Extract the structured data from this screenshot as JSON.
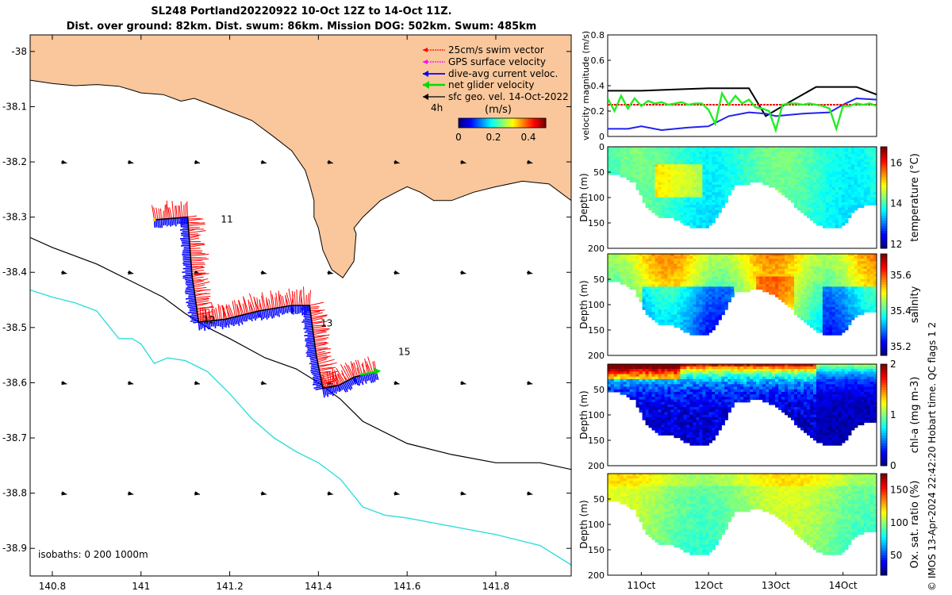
{
  "header": {
    "line1": "SL248 Portland20220922 10-Oct 12Z to 14-Oct 11Z.",
    "line2": "Dist. over ground: 82km. Dist. swum: 86km. Mission DOG: 502km. Swum: 485km"
  },
  "credit": "© IMOS 13-Apr-2024 22:42:20 Hobart time. QC flags 1  2",
  "colors": {
    "land": "#f9c79b",
    "swim_vector": "#ff0000",
    "gps_surface": "#ff00ff",
    "dive_avg_current": "#0000ff",
    "net_glider": "#00dd00",
    "sfc_geo_vel": "#000000",
    "isobath_200": "#000000",
    "isobath_1000": "#33dddd"
  },
  "chart_data": [
    {
      "type": "map",
      "xlim": [
        140.75,
        141.97
      ],
      "ylim": [
        -38.95,
        -37.97
      ],
      "x_ticks": [
        "140.8",
        "141",
        "141.2",
        "141.4",
        "141.6",
        "141.8"
      ],
      "y_ticks": [
        "-38",
        "-38.1",
        "-38.2",
        "-38.3",
        "-38.4",
        "-38.5",
        "-38.6",
        "-38.7",
        "-38.8",
        "-38.9"
      ],
      "legend": {
        "placement": "top-right",
        "entries": [
          "25cm/s swim vector",
          "GPS surface velocity",
          "dive-avg current veloc.",
          "net glider velocity",
          "sfc geo. vel. 14-Oct-2022"
        ]
      },
      "colorbar": {
        "label": "(m/s)",
        "ticks": [
          "0",
          "0.2",
          "0.4"
        ],
        "range": [
          0,
          0.5
        ]
      },
      "time_label": "4h",
      "annotations": [
        {
          "text": "11",
          "lon": 141.18,
          "lat": -38.31
        },
        {
          "text": "12",
          "lon": 141.14,
          "lat": -38.492
        },
        {
          "text": "13",
          "lon": 141.405,
          "lat": -38.498
        },
        {
          "text": "15",
          "lon": 141.58,
          "lat": -38.55
        }
      ],
      "isobaths_label": "isobaths: 0   200  1000m",
      "coastline": [
        [
          140.75,
          -38.052
        ],
        [
          140.8,
          -38.058
        ],
        [
          140.85,
          -38.062
        ],
        [
          140.9,
          -38.06
        ],
        [
          140.95,
          -38.063
        ],
        [
          140.98,
          -38.07
        ],
        [
          141.0,
          -38.075
        ],
        [
          141.05,
          -38.078
        ],
        [
          141.09,
          -38.09
        ],
        [
          141.12,
          -38.085
        ],
        [
          141.17,
          -38.1
        ],
        [
          141.25,
          -38.125
        ],
        [
          141.3,
          -38.155
        ],
        [
          141.34,
          -38.18
        ],
        [
          141.37,
          -38.215
        ],
        [
          141.38,
          -38.24
        ],
        [
          141.39,
          -38.27
        ],
        [
          141.39,
          -38.3
        ],
        [
          141.4,
          -38.32
        ],
        [
          141.41,
          -38.36
        ],
        [
          141.43,
          -38.395
        ],
        [
          141.455,
          -38.41
        ],
        [
          141.48,
          -38.38
        ],
        [
          141.485,
          -38.33
        ],
        [
          141.48,
          -38.32
        ],
        [
          141.5,
          -38.3
        ],
        [
          141.54,
          -38.27
        ],
        [
          141.575,
          -38.255
        ],
        [
          141.6,
          -38.245
        ],
        [
          141.63,
          -38.255
        ],
        [
          141.66,
          -38.27
        ],
        [
          141.7,
          -38.27
        ],
        [
          141.75,
          -38.255
        ],
        [
          141.8,
          -38.245
        ],
        [
          141.86,
          -38.235
        ],
        [
          141.92,
          -38.24
        ],
        [
          141.97,
          -38.27
        ],
        [
          141.97,
          -37.97
        ],
        [
          140.75,
          -37.97
        ]
      ],
      "isobath_200": [
        [
          140.75,
          -38.337
        ],
        [
          140.8,
          -38.355
        ],
        [
          140.9,
          -38.385
        ],
        [
          141.0,
          -38.425
        ],
        [
          141.05,
          -38.445
        ],
        [
          141.1,
          -38.475
        ],
        [
          141.15,
          -38.5
        ],
        [
          141.2,
          -38.52
        ],
        [
          141.28,
          -38.555
        ],
        [
          141.35,
          -38.575
        ],
        [
          141.4,
          -38.6
        ],
        [
          141.45,
          -38.63
        ],
        [
          141.5,
          -38.67
        ],
        [
          141.6,
          -38.71
        ],
        [
          141.7,
          -38.73
        ],
        [
          141.8,
          -38.745
        ],
        [
          141.9,
          -38.745
        ],
        [
          141.97,
          -38.757
        ]
      ],
      "isobath_1000": [
        [
          140.75,
          -38.432
        ],
        [
          140.8,
          -38.445
        ],
        [
          140.85,
          -38.455
        ],
        [
          140.9,
          -38.47
        ],
        [
          140.92,
          -38.49
        ],
        [
          140.95,
          -38.52
        ],
        [
          140.98,
          -38.52
        ],
        [
          141.0,
          -38.53
        ],
        [
          141.03,
          -38.565
        ],
        [
          141.06,
          -38.555
        ],
        [
          141.1,
          -38.56
        ],
        [
          141.15,
          -38.58
        ],
        [
          141.2,
          -38.62
        ],
        [
          141.25,
          -38.665
        ],
        [
          141.3,
          -38.7
        ],
        [
          141.35,
          -38.725
        ],
        [
          141.4,
          -38.745
        ],
        [
          141.45,
          -38.775
        ],
        [
          141.5,
          -38.825
        ],
        [
          141.55,
          -38.84
        ],
        [
          141.6,
          -38.845
        ],
        [
          141.7,
          -38.86
        ],
        [
          141.8,
          -38.875
        ],
        [
          141.9,
          -38.895
        ],
        [
          141.97,
          -38.93
        ]
      ],
      "glider_track": [
        [
          141.03,
          -38.305
        ],
        [
          141.105,
          -38.3
        ],
        [
          141.115,
          -38.405
        ],
        [
          141.13,
          -38.49
        ],
        [
          141.19,
          -38.485
        ],
        [
          141.265,
          -38.47
        ],
        [
          141.34,
          -38.46
        ],
        [
          141.38,
          -38.46
        ],
        [
          141.395,
          -38.55
        ],
        [
          141.41,
          -38.61
        ],
        [
          141.445,
          -38.605
        ],
        [
          141.48,
          -38.59
        ],
        [
          141.53,
          -38.58
        ]
      ],
      "sfc_geo_arrows": {
        "lons": [
          140.82,
          140.97,
          141.12,
          141.27,
          141.42,
          141.57,
          141.72,
          141.87
        ],
        "lats": [
          -38.2,
          -38.4,
          -38.6,
          -38.8
        ],
        "u": 0.18,
        "v": -0.04
      }
    },
    {
      "type": "line",
      "ylabel": "velocity magnitude (m/s)",
      "ylim": [
        0,
        0.8
      ],
      "y_ticks": [
        "0",
        "0.2",
        "0.4",
        "0.6",
        "0.8"
      ],
      "xlim": [
        10.5,
        14.5
      ],
      "series": [
        {
          "name": "",
          "color": "black",
          "x": [
            10.5,
            11.0,
            11.5,
            12.0,
            12.6,
            12.85,
            13.2,
            13.6,
            14.2,
            14.5
          ],
          "y": [
            0.36,
            0.36,
            0.37,
            0.38,
            0.38,
            0.16,
            0.27,
            0.39,
            0.39,
            0.33
          ]
        },
        {
          "name": "",
          "color": "blue",
          "x": [
            10.5,
            10.8,
            11.0,
            11.3,
            11.7,
            12.0,
            12.3,
            12.6,
            12.85,
            13.0,
            13.4,
            13.8,
            14.0,
            14.2,
            14.5
          ],
          "y": [
            0.06,
            0.06,
            0.08,
            0.05,
            0.07,
            0.08,
            0.16,
            0.19,
            0.18,
            0.16,
            0.18,
            0.19,
            0.25,
            0.3,
            0.29
          ]
        },
        {
          "name": "",
          "color": "red",
          "x": [
            10.5,
            14.5
          ],
          "y": [
            0.25,
            0.25
          ]
        },
        {
          "name": "",
          "color": "green",
          "x": [
            10.5,
            10.6,
            10.7,
            10.8,
            10.9,
            11.0,
            11.1,
            11.2,
            11.3,
            11.4,
            11.5,
            11.6,
            11.7,
            11.8,
            11.9,
            12.0,
            12.1,
            12.2,
            12.3,
            12.4,
            12.5,
            12.6,
            12.7,
            12.8,
            12.9,
            13.0,
            13.1,
            13.2,
            13.3,
            13.4,
            13.5,
            13.6,
            13.7,
            13.8,
            13.9,
            14.0,
            14.1,
            14.2,
            14.3,
            14.4,
            14.5
          ],
          "y": [
            0.3,
            0.2,
            0.32,
            0.22,
            0.3,
            0.24,
            0.28,
            0.26,
            0.27,
            0.25,
            0.26,
            0.27,
            0.25,
            0.26,
            0.26,
            0.21,
            0.1,
            0.34,
            0.25,
            0.32,
            0.26,
            0.29,
            0.23,
            0.22,
            0.2,
            0.05,
            0.25,
            0.26,
            0.26,
            0.25,
            0.26,
            0.25,
            0.24,
            0.22,
            0.06,
            0.24,
            0.24,
            0.26,
            0.25,
            0.26,
            0.24
          ]
        }
      ]
    },
    {
      "type": "heatmap",
      "variable": "temperature",
      "ylabel": "Depth (m)",
      "colorbar_label": "temperature (°C)",
      "ylim": [
        0,
        200
      ],
      "y_ticks": [
        "0",
        "50",
        "100",
        "150",
        "200"
      ],
      "clim": [
        11.8,
        16.8
      ],
      "colorbar_ticks": [
        "12",
        "14",
        "16"
      ],
      "base_value": 14.0
    },
    {
      "type": "heatmap",
      "variable": "salinity",
      "ylabel": "Depth (m)",
      "colorbar_label": "salinity",
      "ylim": [
        0,
        200
      ],
      "y_ticks": [
        "50",
        "100",
        "150",
        "200"
      ],
      "clim": [
        35.15,
        35.72
      ],
      "colorbar_ticks": [
        "35.2",
        "35.4",
        "35.6"
      ],
      "base_value": 35.5
    },
    {
      "type": "heatmap",
      "variable": "chl-a",
      "ylabel": "Depth (m)",
      "colorbar_label": "chl-a (mg m-3)",
      "ylim": [
        0,
        200
      ],
      "y_ticks": [
        "50",
        "100",
        "150",
        "200"
      ],
      "clim": [
        0,
        2
      ],
      "colorbar_ticks": [
        "0",
        "1",
        "2"
      ],
      "base_value": 0.3
    },
    {
      "type": "heatmap",
      "variable": "oxygen",
      "ylabel": "Depth (m)",
      "colorbar_label": "Ox. sat. ratio (%)",
      "ylim": [
        0,
        200
      ],
      "y_ticks": [
        "50",
        "100",
        "150",
        "200"
      ],
      "clim": [
        20,
        175
      ],
      "colorbar_ticks": [
        "50",
        "100",
        "150"
      ],
      "base_value": 100,
      "x_ticks": [
        "11Oct",
        "12Oct",
        "13Oct",
        "14Oct"
      ]
    }
  ],
  "section_profile": {
    "depth_limit_lon": [
      10.5,
      10.7,
      10.9,
      11.1,
      11.3,
      11.5,
      11.7,
      11.8,
      11.9,
      12.0,
      12.1,
      12.2,
      12.4,
      12.6,
      12.8,
      13.0,
      13.2,
      13.4,
      13.6,
      13.8,
      14.0,
      14.2,
      14.4,
      14.5
    ],
    "depth_limit_m": [
      55,
      55,
      70,
      120,
      140,
      140,
      155,
      160,
      160,
      158,
      145,
      120,
      75,
      70,
      70,
      80,
      100,
      130,
      150,
      160,
      155,
      120,
      110,
      115
    ]
  }
}
